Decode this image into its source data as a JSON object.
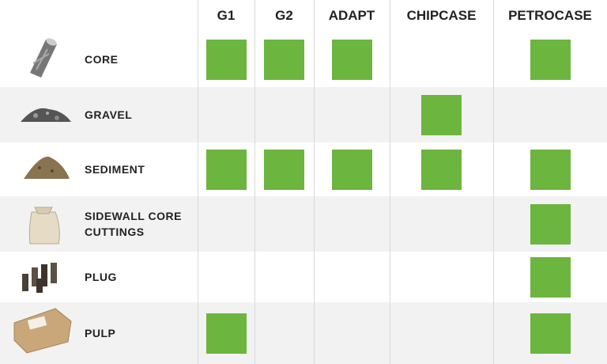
{
  "table": {
    "columns": [
      "G1",
      "G2",
      "ADAPT",
      "CHIPCASE",
      "PETROCASE"
    ],
    "rows": [
      {
        "label": "CORE",
        "cells": [
          true,
          true,
          true,
          false,
          true
        ]
      },
      {
        "label": "GRAVEL",
        "cells": [
          false,
          false,
          false,
          true,
          false
        ]
      },
      {
        "label": "SEDIMENT",
        "cells": [
          true,
          true,
          true,
          true,
          true
        ]
      },
      {
        "label": "SIDEWALL CORE CUTTINGS",
        "cells": [
          false,
          false,
          false,
          false,
          true
        ]
      },
      {
        "label": "PLUG",
        "cells": [
          false,
          false,
          false,
          false,
          true
        ]
      },
      {
        "label": "PULP",
        "cells": [
          true,
          false,
          false,
          false,
          true
        ]
      }
    ]
  }
}
